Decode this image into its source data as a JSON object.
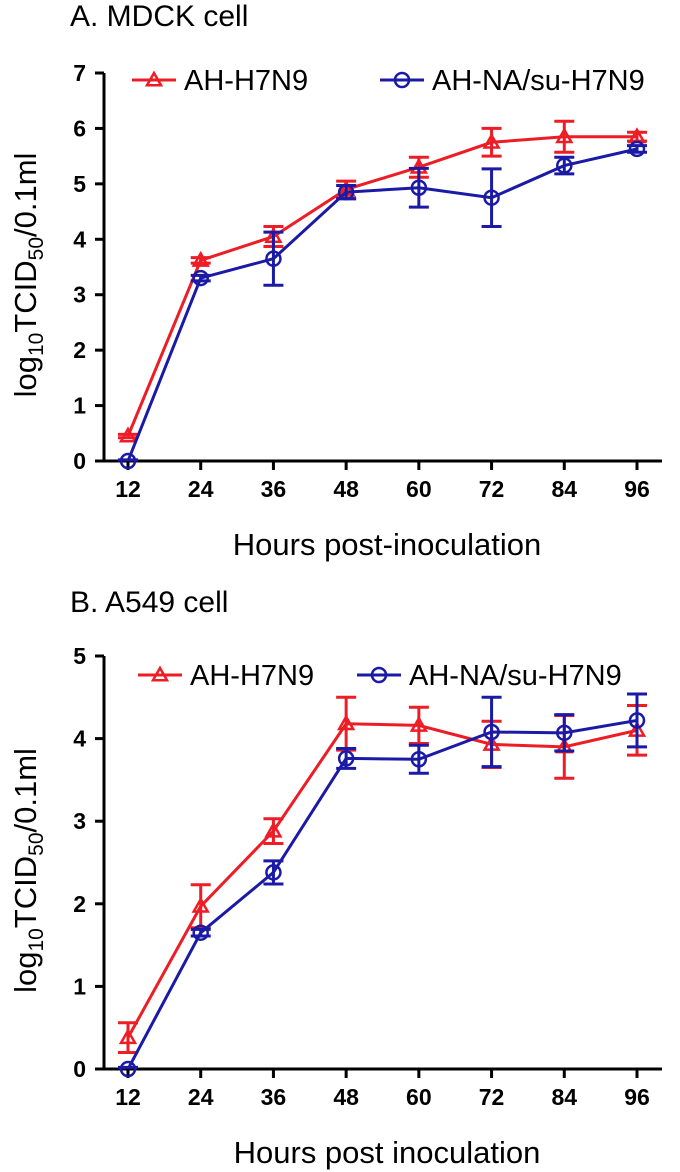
{
  "colors": {
    "series_1": "#ee1c25",
    "series_2": "#1a1aa6",
    "axis": "#000000"
  },
  "chart_data": [
    {
      "panel_title": "A. MDCK cell",
      "type": "line",
      "x": [
        12,
        24,
        36,
        48,
        60,
        72,
        84,
        96
      ],
      "xlabel": "Hours post-inoculation",
      "ylabel_main": "log",
      "ylabel_sub1": "10",
      "ylabel_mid": "TCID",
      "ylabel_sub2": "50",
      "ylabel_tail": "/0.1ml",
      "ylim": [
        0,
        7
      ],
      "yticks": [
        "0",
        "1",
        "2",
        "3",
        "4",
        "5",
        "6",
        "7"
      ],
      "xticks": [
        "12",
        "24",
        "36",
        "48",
        "60",
        "72",
        "84",
        "96"
      ],
      "legend_position": "top",
      "series": [
        {
          "name": "AH-H7N9",
          "marker": "triangle",
          "values": [
            0.45,
            3.62,
            4.05,
            4.9,
            5.3,
            5.75,
            5.85,
            5.85
          ],
          "errors": [
            0.03,
            0.05,
            0.18,
            0.15,
            0.18,
            0.25,
            0.28,
            0.08
          ]
        },
        {
          "name": "AH-NA/su-H7N9",
          "marker": "circle",
          "values": [
            0.0,
            3.3,
            3.65,
            4.85,
            4.93,
            4.75,
            5.33,
            5.63
          ],
          "errors": [
            0.02,
            0.05,
            0.48,
            0.12,
            0.35,
            0.52,
            0.15,
            0.06
          ]
        }
      ]
    },
    {
      "panel_title": "B. A549 cell",
      "type": "line",
      "x": [
        12,
        24,
        36,
        48,
        60,
        72,
        84,
        96
      ],
      "xlabel": "Hours post inoculation",
      "ylabel_main": "log",
      "ylabel_sub1": "10",
      "ylabel_mid": "TCID",
      "ylabel_sub2": "50",
      "ylabel_tail": "/0.1ml",
      "ylim": [
        0,
        5
      ],
      "yticks": [
        "0",
        "1",
        "2",
        "3",
        "4",
        "5"
      ],
      "xticks": [
        "12",
        "24",
        "36",
        "48",
        "60",
        "72",
        "84",
        "96"
      ],
      "legend_position": "top",
      "series": [
        {
          "name": "AH-H7N9",
          "marker": "triangle",
          "values": [
            0.38,
            1.97,
            2.88,
            4.18,
            4.16,
            3.93,
            3.9,
            4.1
          ],
          "errors": [
            0.18,
            0.26,
            0.15,
            0.32,
            0.22,
            0.28,
            0.38,
            0.3
          ]
        },
        {
          "name": "AH-NA/su-H7N9",
          "marker": "circle",
          "values": [
            0.0,
            1.65,
            2.38,
            3.76,
            3.75,
            4.08,
            4.07,
            4.22
          ],
          "errors": [
            0.02,
            0.04,
            0.14,
            0.12,
            0.17,
            0.42,
            0.22,
            0.32
          ]
        }
      ]
    }
  ]
}
